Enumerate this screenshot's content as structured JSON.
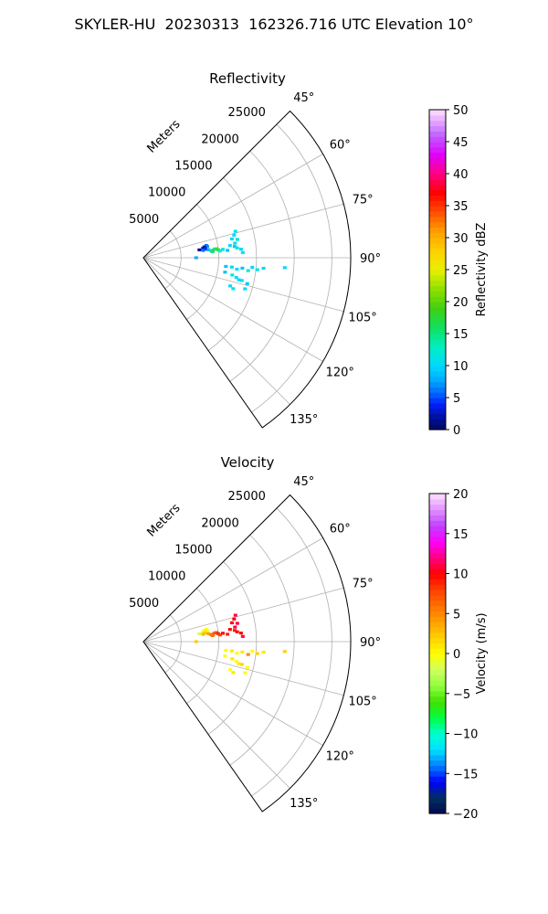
{
  "figure": {
    "title": "SKYLER-HU  20230313  162326.716 UTC Elevation 10°"
  },
  "chart_data": [
    {
      "type": "polar-scatter",
      "title": "Reflectivity",
      "radial_label": "Meters",
      "radial_ticks": [
        5000,
        10000,
        15000,
        20000,
        25000
      ],
      "r_max": 27500,
      "theta_range_deg": [
        45,
        145
      ],
      "theta_ticks": [
        "45°",
        "60°",
        "75°",
        "90°",
        "105°",
        "120°",
        "135°"
      ],
      "theta_tick_values": [
        45,
        60,
        75,
        90,
        105,
        120,
        135
      ],
      "grid": true,
      "colorbar": {
        "label": "Reflectivity dBZ",
        "range": [
          0,
          50
        ],
        "ticks": [
          "0",
          "5",
          "10",
          "15",
          "20",
          "25",
          "30",
          "35",
          "40",
          "45",
          "50"
        ],
        "tick_values": [
          0,
          5,
          10,
          15,
          20,
          25,
          30,
          35,
          40,
          45,
          50
        ]
      },
      "points": [
        {
          "theta": 79,
          "r": 8500,
          "v": 6
        },
        {
          "theta": 80,
          "r": 8600,
          "v": 7
        },
        {
          "theta": 80,
          "r": 8200,
          "v": 2
        },
        {
          "theta": 81,
          "r": 8000,
          "v": 3
        },
        {
          "theta": 82,
          "r": 7500,
          "v": 2
        },
        {
          "theta": 82,
          "r": 8300,
          "v": 4
        },
        {
          "theta": 83,
          "r": 8000,
          "v": 6
        },
        {
          "theta": 83,
          "r": 8700,
          "v": 8
        },
        {
          "theta": 83,
          "r": 9500,
          "v": 12
        },
        {
          "theta": 84,
          "r": 9000,
          "v": 14
        },
        {
          "theta": 84,
          "r": 9300,
          "v": 18
        },
        {
          "theta": 85,
          "r": 9200,
          "v": 15
        },
        {
          "theta": 83,
          "r": 9800,
          "v": 20
        },
        {
          "theta": 84,
          "r": 10000,
          "v": 16
        },
        {
          "theta": 85,
          "r": 10200,
          "v": 13
        },
        {
          "theta": 84,
          "r": 10600,
          "v": 11
        },
        {
          "theta": 85,
          "r": 11200,
          "v": 9
        },
        {
          "theta": 82,
          "r": 11600,
          "v": 10
        },
        {
          "theta": 78,
          "r": 12000,
          "v": 10
        },
        {
          "theta": 81,
          "r": 12300,
          "v": 11
        },
        {
          "theta": 83,
          "r": 12200,
          "v": 9
        },
        {
          "theta": 79,
          "r": 12700,
          "v": 11
        },
        {
          "theta": 84,
          "r": 12500,
          "v": 12
        },
        {
          "theta": 76,
          "r": 12400,
          "v": 10
        },
        {
          "theta": 74,
          "r": 12700,
          "v": 11
        },
        {
          "theta": 85,
          "r": 13000,
          "v": 10
        },
        {
          "theta": 87,
          "r": 13200,
          "v": 11
        },
        {
          "theta": 90,
          "r": 7000,
          "v": 8
        },
        {
          "theta": 96,
          "r": 11000,
          "v": 9
        },
        {
          "theta": 96,
          "r": 11800,
          "v": 10
        },
        {
          "theta": 97,
          "r": 12500,
          "v": 11
        },
        {
          "theta": 96,
          "r": 13200,
          "v": 9
        },
        {
          "theta": 95,
          "r": 14500,
          "v": 10
        },
        {
          "theta": 96,
          "r": 15200,
          "v": 11
        },
        {
          "theta": 95,
          "r": 16000,
          "v": 10
        },
        {
          "theta": 100,
          "r": 11000,
          "v": 9
        },
        {
          "theta": 101,
          "r": 12000,
          "v": 12
        },
        {
          "theta": 102,
          "r": 12600,
          "v": 10
        },
        {
          "theta": 103,
          "r": 13400,
          "v": 11
        },
        {
          "theta": 104,
          "r": 14200,
          "v": 9
        },
        {
          "theta": 103,
          "r": 13000,
          "v": 10
        },
        {
          "theta": 108,
          "r": 12100,
          "v": 10
        },
        {
          "theta": 109,
          "r": 12600,
          "v": 11
        },
        {
          "theta": 107,
          "r": 14100,
          "v": 10
        },
        {
          "theta": 94,
          "r": 18800,
          "v": 10
        },
        {
          "theta": 97,
          "r": 14000,
          "v": 12
        }
      ]
    },
    {
      "type": "polar-scatter",
      "title": "Velocity",
      "radial_label": "Meters",
      "radial_ticks": [
        5000,
        10000,
        15000,
        20000,
        25000
      ],
      "r_max": 27500,
      "theta_range_deg": [
        45,
        145
      ],
      "theta_ticks": [
        "45°",
        "60°",
        "75°",
        "90°",
        "105°",
        "120°",
        "135°"
      ],
      "theta_tick_values": [
        45,
        60,
        75,
        90,
        105,
        120,
        135
      ],
      "grid": true,
      "colorbar": {
        "label": "Velocity (m/s)",
        "range": [
          -20,
          20
        ],
        "ticks": [
          "−20",
          "−15",
          "−10",
          "−5",
          "0",
          "5",
          "10",
          "15",
          "20"
        ],
        "tick_values": [
          -20,
          -15,
          -10,
          -5,
          0,
          5,
          10,
          15,
          20
        ]
      },
      "points": [
        {
          "theta": 79,
          "r": 8500,
          "v": 0
        },
        {
          "theta": 80,
          "r": 8600,
          "v": -1
        },
        {
          "theta": 80,
          "r": 8200,
          "v": 1
        },
        {
          "theta": 81,
          "r": 8000,
          "v": 0
        },
        {
          "theta": 82,
          "r": 7500,
          "v": -2
        },
        {
          "theta": 82,
          "r": 8300,
          "v": 2
        },
        {
          "theta": 83,
          "r": 8000,
          "v": 3
        },
        {
          "theta": 83,
          "r": 8700,
          "v": 4
        },
        {
          "theta": 83,
          "r": 9500,
          "v": 6
        },
        {
          "theta": 84,
          "r": 9000,
          "v": 5
        },
        {
          "theta": 84,
          "r": 9300,
          "v": 7
        },
        {
          "theta": 85,
          "r": 9200,
          "v": 6
        },
        {
          "theta": 83,
          "r": 9800,
          "v": 8
        },
        {
          "theta": 84,
          "r": 10000,
          "v": 9
        },
        {
          "theta": 85,
          "r": 10200,
          "v": 8
        },
        {
          "theta": 84,
          "r": 10600,
          "v": 10
        },
        {
          "theta": 85,
          "r": 11200,
          "v": 9
        },
        {
          "theta": 82,
          "r": 11600,
          "v": 10
        },
        {
          "theta": 78,
          "r": 12000,
          "v": 10
        },
        {
          "theta": 81,
          "r": 12300,
          "v": 11
        },
        {
          "theta": 83,
          "r": 12200,
          "v": 9
        },
        {
          "theta": 79,
          "r": 12700,
          "v": 11
        },
        {
          "theta": 84,
          "r": 12500,
          "v": 10
        },
        {
          "theta": 76,
          "r": 12400,
          "v": 10
        },
        {
          "theta": 74,
          "r": 12700,
          "v": 11
        },
        {
          "theta": 85,
          "r": 13000,
          "v": 10
        },
        {
          "theta": 87,
          "r": 13200,
          "v": 11
        },
        {
          "theta": 90,
          "r": 7000,
          "v": 2
        },
        {
          "theta": 96,
          "r": 11000,
          "v": 0
        },
        {
          "theta": 96,
          "r": 11800,
          "v": 1
        },
        {
          "theta": 97,
          "r": 12500,
          "v": 0
        },
        {
          "theta": 96,
          "r": 13200,
          "v": 1
        },
        {
          "theta": 95,
          "r": 14500,
          "v": 0
        },
        {
          "theta": 96,
          "r": 15200,
          "v": 2
        },
        {
          "theta": 95,
          "r": 16000,
          "v": 1
        },
        {
          "theta": 100,
          "r": 11000,
          "v": 0
        },
        {
          "theta": 101,
          "r": 12000,
          "v": 1
        },
        {
          "theta": 102,
          "r": 12600,
          "v": 0
        },
        {
          "theta": 103,
          "r": 13400,
          "v": 2
        },
        {
          "theta": 104,
          "r": 14200,
          "v": 0
        },
        {
          "theta": 103,
          "r": 13000,
          "v": 1
        },
        {
          "theta": 108,
          "r": 12100,
          "v": 0
        },
        {
          "theta": 109,
          "r": 12600,
          "v": 1
        },
        {
          "theta": 107,
          "r": 14100,
          "v": 0
        },
        {
          "theta": 94,
          "r": 18800,
          "v": 2
        },
        {
          "theta": 97,
          "r": 14000,
          "v": 5
        }
      ]
    }
  ]
}
